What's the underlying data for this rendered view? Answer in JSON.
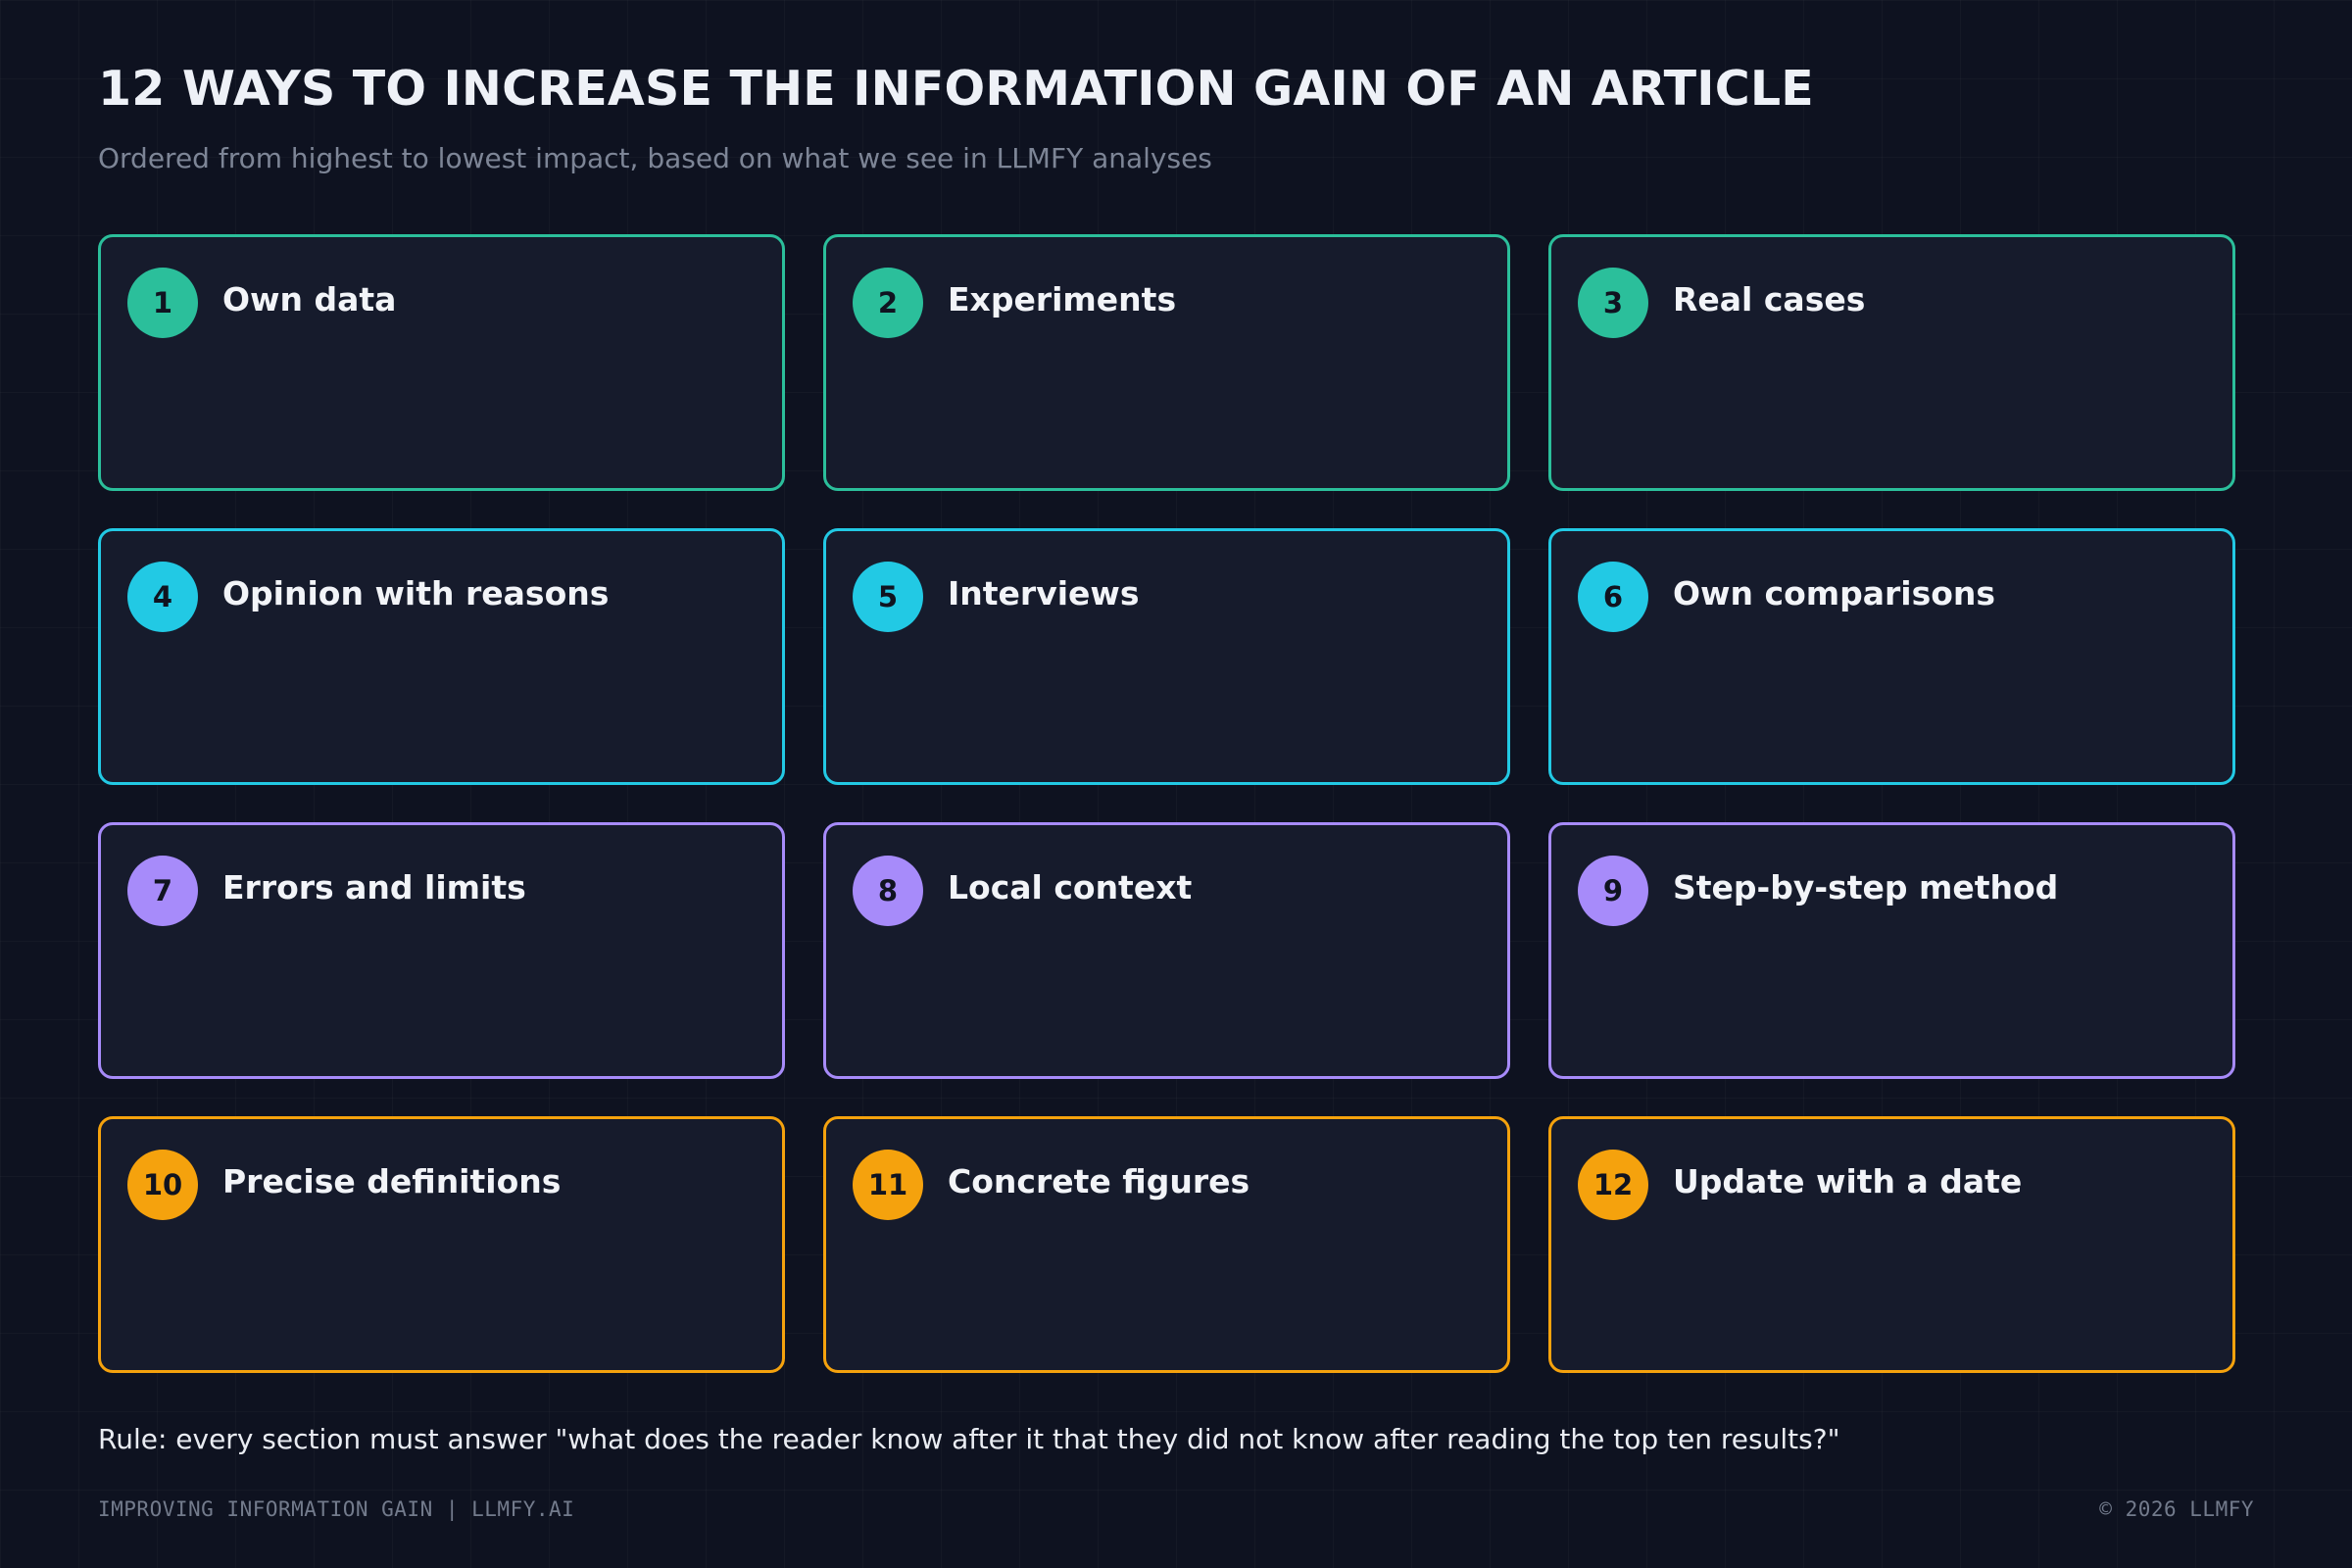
{
  "header": {
    "title": "12 WAYS TO INCREASE THE INFORMATION GAIN OF AN ARTICLE",
    "subtitle": "Ordered from highest to lowest impact, based on what we see in LLMFY analyses"
  },
  "colors": {
    "tier1": "#2bbf9b",
    "tier2": "#22c9e4",
    "tier3": "#a78bfa",
    "tier4": "#f5a20d",
    "background": "#0e1220",
    "card": "#161b2c"
  },
  "cards": [
    {
      "number": "1",
      "title": "Own data",
      "color": "#2bbf9b"
    },
    {
      "number": "2",
      "title": "Experiments",
      "color": "#2bbf9b"
    },
    {
      "number": "3",
      "title": "Real cases",
      "color": "#2bbf9b"
    },
    {
      "number": "4",
      "title": "Opinion with reasons",
      "color": "#22c9e4"
    },
    {
      "number": "5",
      "title": "Interviews",
      "color": "#22c9e4"
    },
    {
      "number": "6",
      "title": "Own comparisons",
      "color": "#22c9e4"
    },
    {
      "number": "7",
      "title": "Errors and limits",
      "color": "#a78bfa"
    },
    {
      "number": "8",
      "title": "Local context",
      "color": "#a78bfa"
    },
    {
      "number": "9",
      "title": "Step-by-step method",
      "color": "#a78bfa"
    },
    {
      "number": "10",
      "title": "Precise definitions",
      "color": "#f5a20d"
    },
    {
      "number": "11",
      "title": "Concrete figures",
      "color": "#f5a20d"
    },
    {
      "number": "12",
      "title": "Update with a date",
      "color": "#f5a20d"
    }
  ],
  "rule": "Rule: every section must answer \"what does the reader know after it that they did not know after reading the top ten results?\"",
  "footer": {
    "left": "IMPROVING INFORMATION GAIN | LLMFY.AI",
    "right": "© 2026 LLMFY"
  }
}
